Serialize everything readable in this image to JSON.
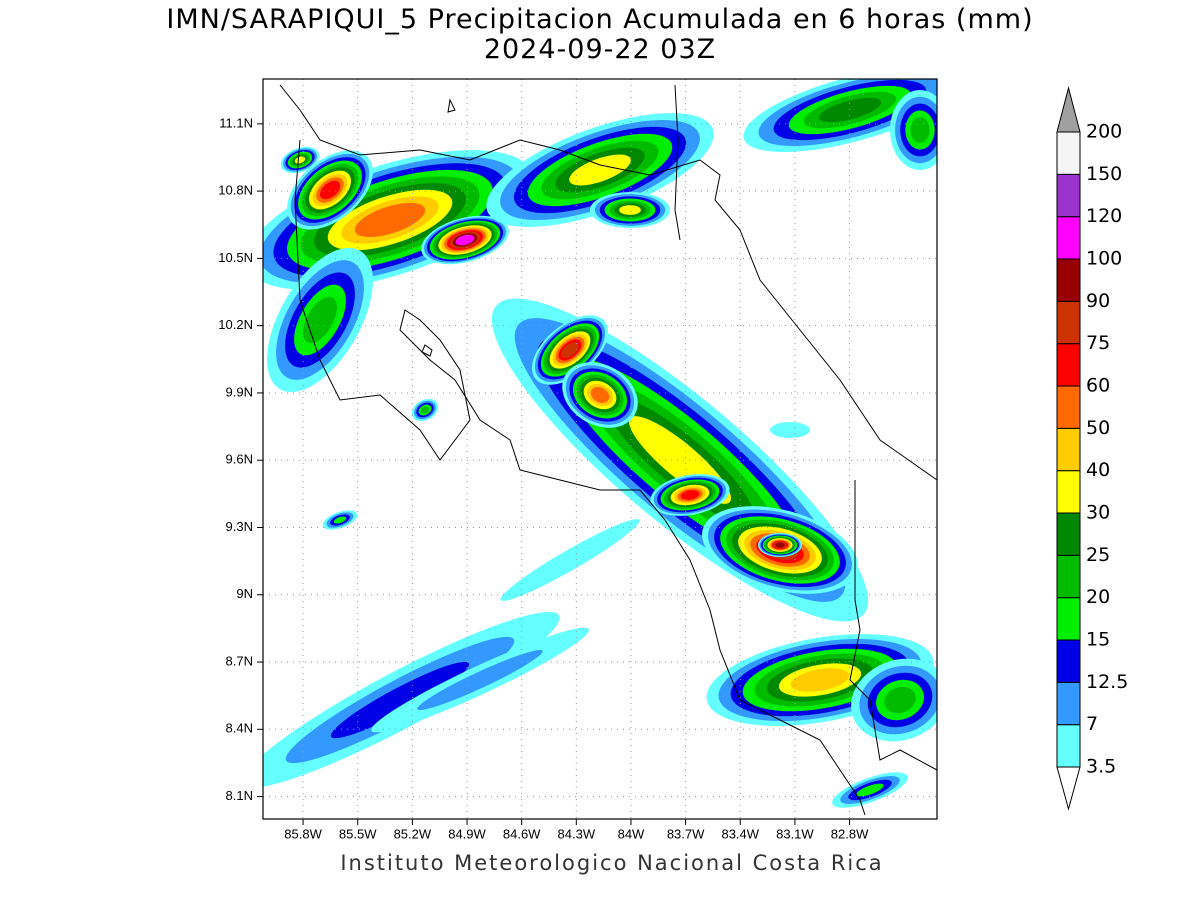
{
  "header": {
    "title": "IMN/SARAPIQUI_5 Precipitacion Acumulada en 6 horas (mm)",
    "subtitle": "2024-09-22 03Z"
  },
  "map": {
    "lon_range": [
      -86.02,
      -82.32
    ],
    "lat_range": [
      8.0,
      11.3
    ],
    "lon_ticks": [
      {
        "value": -85.8,
        "label": "85.8W"
      },
      {
        "value": -85.5,
        "label": "85.5W"
      },
      {
        "value": -85.2,
        "label": "85.2W"
      },
      {
        "value": -84.9,
        "label": "84.9W"
      },
      {
        "value": -84.6,
        "label": "84.6W"
      },
      {
        "value": -84.3,
        "label": "84.3W"
      },
      {
        "value": -84.0,
        "label": "84W"
      },
      {
        "value": -83.7,
        "label": "83.7W"
      },
      {
        "value": -83.4,
        "label": "83.4W"
      },
      {
        "value": -83.1,
        "label": "83.1W"
      },
      {
        "value": -82.8,
        "label": "82.8W"
      }
    ],
    "lat_ticks": [
      {
        "value": 11.1,
        "label": "11.1N"
      },
      {
        "value": 10.8,
        "label": "10.8N"
      },
      {
        "value": 10.5,
        "label": "10.5N"
      },
      {
        "value": 10.2,
        "label": "10.2N"
      },
      {
        "value": 9.9,
        "label": "9.9N"
      },
      {
        "value": 9.6,
        "label": "9.6N"
      },
      {
        "value": 9.3,
        "label": "9.3N"
      },
      {
        "value": 9.0,
        "label": "9N"
      },
      {
        "value": 8.7,
        "label": "8.7N"
      },
      {
        "value": 8.4,
        "label": "8.4N"
      },
      {
        "value": 8.1,
        "label": "8.1N"
      }
    ],
    "grid": true
  },
  "colorbar": {
    "levels": [
      3.5,
      7,
      12.5,
      15,
      20,
      25,
      30,
      40,
      50,
      60,
      75,
      90,
      100,
      120,
      150,
      200
    ],
    "colors": [
      "#66ffff",
      "#3399ff",
      "#0000e6",
      "#00ee00",
      "#00bb00",
      "#008800",
      "#ffff00",
      "#ffcc00",
      "#ff6a00",
      "#ff0000",
      "#cc3300",
      "#990000",
      "#ff00ff",
      "#9933cc",
      "#f5f5f5"
    ],
    "over_color": "#a0a0a0",
    "under_color": "#ffffff"
  },
  "footer": "Instituto Meteorologico Nacional Costa Rica"
}
